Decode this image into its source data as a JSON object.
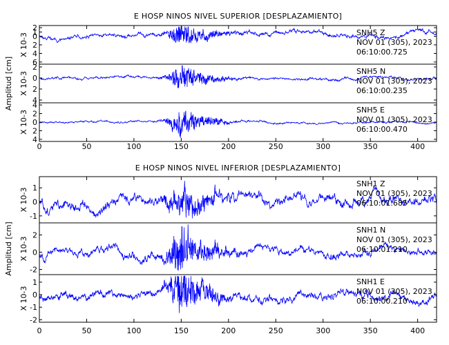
{
  "chart_data": [
    {
      "type": "line",
      "title": "E HOSP NINOS NIVEL SUPERIOR [DESPLAZAMIENTO]",
      "ylabel": "Amplitud [cm]",
      "xlim": [
        0,
        420
      ],
      "x_ticks": [
        0,
        50,
        100,
        150,
        200,
        250,
        300,
        350,
        400
      ],
      "series": [
        {
          "name": "SNH5 Z",
          "annotation": [
            "SNH5   Z",
            "NOV 01 (305), 2023",
            "06:10:00.725"
          ],
          "unit_label": "X 10-3",
          "ylim": [
            -6.5,
            2.5
          ],
          "y_ticks": [
            -6,
            -4,
            -2,
            0,
            1,
            2
          ],
          "tick_labels": [
            "6",
            "4",
            "2",
            "0",
            "1",
            "2"
          ],
          "seed": 11,
          "base_amp": 0.7,
          "event_amp": 2.2,
          "offset": 0.2
        },
        {
          "name": "SNH5 N",
          "annotation": [
            "SNH5   N",
            "NOV 01 (305), 2023",
            "06:10:00.235"
          ],
          "unit_label": "X 10-3",
          "ylim": [
            -4.5,
            2.5
          ],
          "y_ticks": [
            -4,
            -2,
            0,
            2
          ],
          "tick_labels": [
            "4",
            "2",
            "0",
            "2"
          ],
          "seed": 23,
          "base_amp": 0.35,
          "event_amp": 1.9,
          "offset": 0
        },
        {
          "name": "SNH5 E",
          "annotation": [
            "SNH5   E",
            "NOV 01 (305), 2023",
            "06:10:00.470"
          ],
          "unit_label": "X 10-3",
          "ylim": [
            -4.5,
            4.5
          ],
          "y_ticks": [
            -4,
            -2,
            0,
            2,
            4
          ],
          "tick_labels": [
            "4",
            "2",
            "0",
            "2",
            "4"
          ],
          "seed": 37,
          "base_amp": 0.35,
          "event_amp": 2.6,
          "offset": 0
        }
      ]
    },
    {
      "type": "line",
      "title": "E HOSP NINOS NIVEL INFERIOR [DESPLAZAMIENTO]",
      "ylabel": "Amplitud [cm]",
      "xlim": [
        0,
        420
      ],
      "x_ticks": [
        0,
        50,
        100,
        150,
        200,
        250,
        300,
        350,
        400
      ],
      "series": [
        {
          "name": "SNH1 Z",
          "annotation": [
            "SNH1   Z",
            "NOV 01 (305), 2023",
            "06:10:01.685"
          ],
          "unit_label": "X 10-3",
          "ylim": [
            -1.5,
            1.8
          ],
          "y_ticks": [
            -1,
            0,
            1
          ],
          "tick_labels": [
            "-1",
            "0",
            "1"
          ],
          "seed": 51,
          "base_amp": 0.55,
          "event_amp": 1.0,
          "offset": 0
        },
        {
          "name": "SNH1 N",
          "annotation": [
            "SNH1   N",
            "NOV 01 (305), 2023",
            "06:10:01.210"
          ],
          "unit_label": "X 10-3",
          "ylim": [
            -2.6,
            3.4
          ],
          "y_ticks": [
            -2,
            0,
            2
          ],
          "tick_labels": [
            "-2",
            "0",
            "2"
          ],
          "seed": 67,
          "base_amp": 0.7,
          "event_amp": 2.2,
          "offset": 0
        },
        {
          "name": "SNH1 E",
          "annotation": [
            "SNH1   E",
            "NOV 01 (305), 2023",
            "06:10:00.210"
          ],
          "unit_label": "X 10-3",
          "ylim": [
            -2.2,
            1.6
          ],
          "y_ticks": [
            -2,
            -1,
            0,
            1
          ],
          "tick_labels": [
            "-2",
            "-1",
            "0",
            "1"
          ],
          "seed": 79,
          "base_amp": 0.5,
          "event_amp": 1.5,
          "offset": 0
        }
      ]
    }
  ],
  "event_center_s": 150,
  "trace_color": "#0000ff"
}
